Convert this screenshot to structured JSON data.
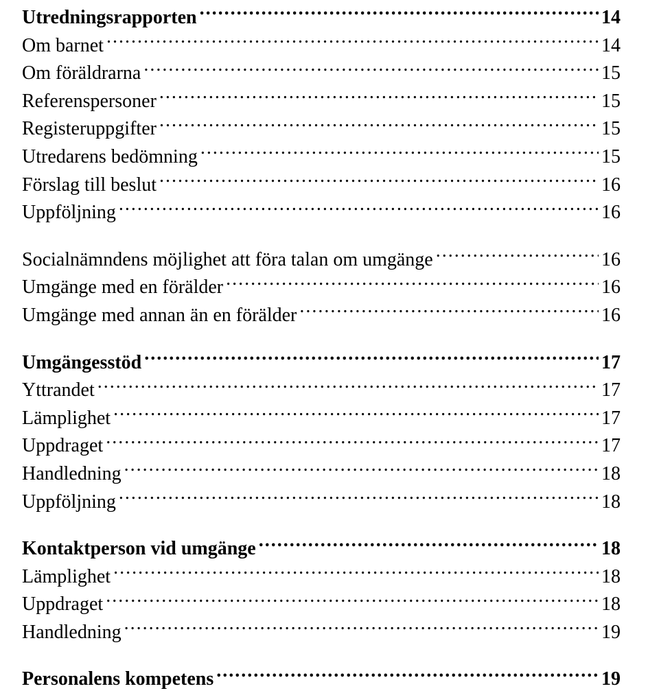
{
  "font": {
    "family": "Times New Roman",
    "size_pt": 21,
    "color": "#000000"
  },
  "background_color": "#ffffff",
  "toc": [
    {
      "label": "Utredningsrapporten",
      "page": "14",
      "bold": true,
      "gap_before": false
    },
    {
      "label": "Om barnet",
      "page": "14",
      "bold": false,
      "gap_before": false
    },
    {
      "label": "Om föräldrarna",
      "page": "15",
      "bold": false,
      "gap_before": false
    },
    {
      "label": "Referenspersoner",
      "page": "15",
      "bold": false,
      "gap_before": false
    },
    {
      "label": "Registeruppgifter",
      "page": "15",
      "bold": false,
      "gap_before": false
    },
    {
      "label": "Utredarens bedömning",
      "page": "15",
      "bold": false,
      "gap_before": false
    },
    {
      "label": "Förslag till beslut",
      "page": "16",
      "bold": false,
      "gap_before": false
    },
    {
      "label": "Uppföljning",
      "page": "16",
      "bold": false,
      "gap_before": false
    },
    {
      "label": "Socialnämndens möjlighet att föra talan om umgänge",
      "page": "16",
      "bold": false,
      "gap_before": true
    },
    {
      "label": "Umgänge med en förälder",
      "page": "16",
      "bold": false,
      "gap_before": false
    },
    {
      "label": "Umgänge med annan än en förälder",
      "page": "16",
      "bold": false,
      "gap_before": false
    },
    {
      "label": "Umgängesstöd",
      "page": "17",
      "bold": true,
      "gap_before": true
    },
    {
      "label": "Yttrandet",
      "page": "17",
      "bold": false,
      "gap_before": false
    },
    {
      "label": "Lämplighet",
      "page": "17",
      "bold": false,
      "gap_before": false
    },
    {
      "label": "Uppdraget",
      "page": "17",
      "bold": false,
      "gap_before": false
    },
    {
      "label": "Handledning",
      "page": "18",
      "bold": false,
      "gap_before": false
    },
    {
      "label": "Uppföljning",
      "page": "18",
      "bold": false,
      "gap_before": false
    },
    {
      "label": "Kontaktperson vid umgänge",
      "page": "18",
      "bold": true,
      "gap_before": true
    },
    {
      "label": "Lämplighet",
      "page": "18",
      "bold": false,
      "gap_before": false
    },
    {
      "label": "Uppdraget",
      "page": "18",
      "bold": false,
      "gap_before": false
    },
    {
      "label": "Handledning",
      "page": "19",
      "bold": false,
      "gap_before": false
    },
    {
      "label": "Personalens kompetens",
      "page": "19",
      "bold": true,
      "gap_before": true
    }
  ]
}
